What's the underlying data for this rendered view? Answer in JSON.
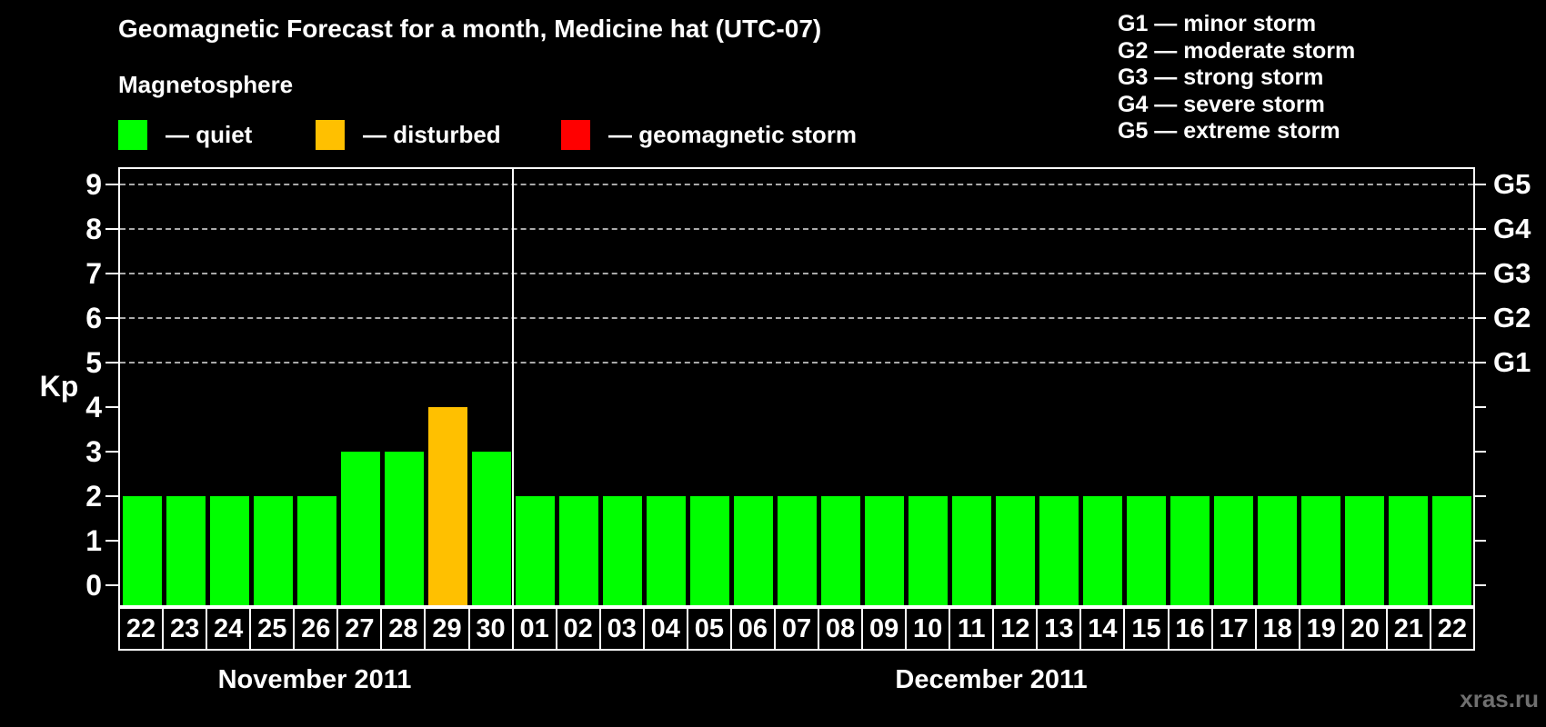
{
  "title": "Geomagnetic Forecast for a month, Medicine hat (UTC-07)",
  "magnetosphere_label": "Magnetosphere",
  "status_legend": [
    {
      "name": "quiet",
      "label": "— quiet",
      "color": "#00ff00"
    },
    {
      "name": "disturbed",
      "label": "— disturbed",
      "color": "#ffc000"
    },
    {
      "name": "storm",
      "label": "— geomagnetic storm",
      "color": "#ff0000"
    }
  ],
  "g_scale_legend": [
    "G1 — minor storm",
    "G2 — moderate storm",
    "G3 — strong storm",
    "G4 — severe storm",
    "G5 — extreme storm"
  ],
  "watermark": "xras.ru",
  "chart_data": {
    "type": "bar",
    "title": "Geomagnetic Forecast for a month, Medicine hat (UTC-07)",
    "xlabel": "",
    "ylabel": "Kp",
    "ylim": [
      -0.45,
      9.35
    ],
    "y_ticks": [
      0,
      1,
      2,
      3,
      4,
      5,
      6,
      7,
      8,
      9
    ],
    "gridlines_at": [
      5,
      6,
      7,
      8,
      9
    ],
    "grid_on": true,
    "legend_position": "top",
    "right_axis": [
      {
        "value": 5,
        "label": "G1"
      },
      {
        "value": 6,
        "label": "G2"
      },
      {
        "value": 7,
        "label": "G3"
      },
      {
        "value": 8,
        "label": "G4"
      },
      {
        "value": 9,
        "label": "G5"
      }
    ],
    "months": [
      {
        "label": "November 2011",
        "days": 9
      },
      {
        "label": "December 2011",
        "days": 22
      }
    ],
    "categories": [
      "22",
      "23",
      "24",
      "25",
      "26",
      "27",
      "28",
      "29",
      "30",
      "01",
      "02",
      "03",
      "04",
      "05",
      "06",
      "07",
      "08",
      "09",
      "10",
      "11",
      "12",
      "13",
      "14",
      "15",
      "16",
      "17",
      "18",
      "19",
      "20",
      "21",
      "22"
    ],
    "values": [
      2,
      2,
      2,
      2,
      2,
      3,
      3,
      4,
      3,
      2,
      2,
      2,
      2,
      2,
      2,
      2,
      2,
      2,
      2,
      2,
      2,
      2,
      2,
      2,
      2,
      2,
      2,
      2,
      2,
      2,
      2
    ],
    "statuses": [
      "quiet",
      "quiet",
      "quiet",
      "quiet",
      "quiet",
      "quiet",
      "quiet",
      "disturbed",
      "quiet",
      "quiet",
      "quiet",
      "quiet",
      "quiet",
      "quiet",
      "quiet",
      "quiet",
      "quiet",
      "quiet",
      "quiet",
      "quiet",
      "quiet",
      "quiet",
      "quiet",
      "quiet",
      "quiet",
      "quiet",
      "quiet",
      "quiet",
      "quiet",
      "quiet",
      "quiet"
    ],
    "colors": {
      "quiet": "#00ff00",
      "disturbed": "#ffc000",
      "storm": "#ff0000"
    }
  }
}
